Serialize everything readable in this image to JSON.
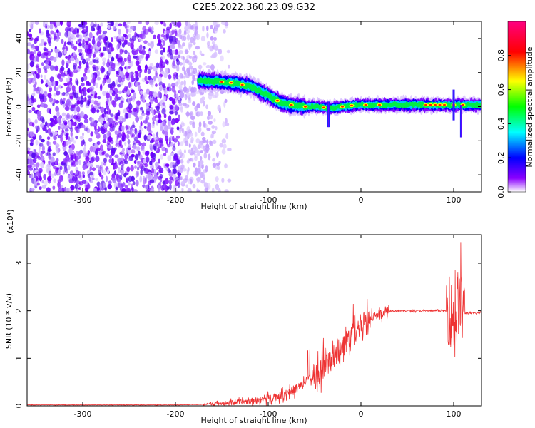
{
  "title": "C2E5.2022.360.23.09.G32",
  "chart_data": [
    {
      "type": "heatmap",
      "xlabel": "Height of straight line (km)",
      "ylabel": "Frequency (Hz)",
      "xlim": [
        -360,
        130
      ],
      "ylim": [
        -50,
        50
      ],
      "xticks": [
        -300,
        -200,
        -100,
        0,
        100
      ],
      "yticks": [
        -40,
        -20,
        0,
        20,
        40
      ],
      "colorbar": {
        "label": "Normalized spectral amplitude",
        "range": [
          0,
          1
        ],
        "ticks": [
          "0.0",
          "0.2",
          "0.4",
          "0.6",
          "0.8"
        ],
        "colors": [
          "#ffffff",
          "#7a00ff",
          "#0000ff",
          "#00ffff",
          "#00ff00",
          "#ffff00",
          "#ff0000",
          "#ff0080"
        ]
      },
      "signal_track": {
        "x": [
          -175,
          -160,
          -140,
          -120,
          -105,
          -95,
          -85,
          -75,
          -60,
          -45,
          -35,
          -20,
          -5,
          10,
          30,
          60,
          90,
          110,
          130
        ],
        "y": [
          15,
          15,
          14,
          12,
          8,
          5,
          2,
          1,
          0,
          0,
          -1,
          0,
          1,
          1,
          1,
          1,
          1,
          1,
          1
        ]
      },
      "noise_region": {
        "x_from": -360,
        "x_to": -150
      }
    },
    {
      "type": "line",
      "xlabel": "Height of straight line (km)",
      "ylabel": "SNR (10 * v/v)",
      "y_multiplier": "(x10⁴)",
      "xlim": [
        -360,
        130
      ],
      "ylim": [
        0,
        3.6
      ],
      "xticks": [
        -300,
        -200,
        -100,
        0,
        100
      ],
      "yticks": [
        0,
        1,
        2,
        3
      ],
      "color": "#ee3333",
      "series": [
        {
          "x": [
            -360,
            -300,
            -250,
            -200,
            -170,
            -150,
            -130,
            -110,
            -90,
            -70,
            -55,
            -45,
            -35,
            -25,
            -18,
            -10,
            0,
            15,
            30,
            50,
            80,
            95,
            100,
            105,
            110,
            130
          ],
          "values": [
            0.02,
            0.02,
            0.02,
            0.02,
            0.03,
            0.06,
            0.08,
            0.12,
            0.2,
            0.35,
            0.55,
            0.7,
            0.9,
            1.15,
            1.3,
            1.5,
            1.7,
            1.9,
            2.0,
            2.0,
            2.0,
            2.0,
            1.8,
            2.2,
            1.95,
            1.95
          ]
        }
      ]
    }
  ]
}
